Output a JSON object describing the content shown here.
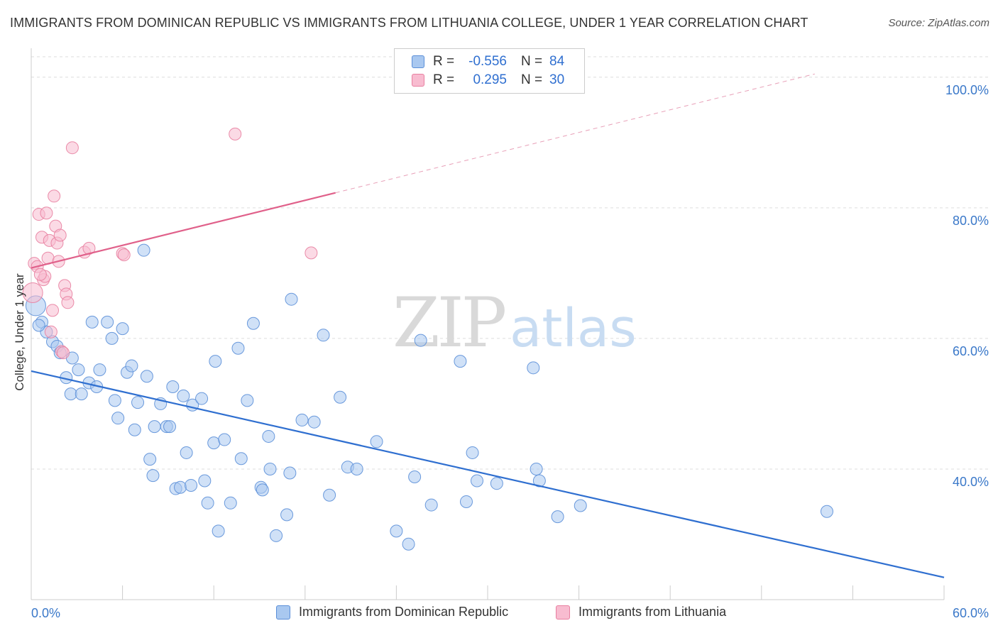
{
  "title": "IMMIGRANTS FROM DOMINICAN REPUBLIC VS IMMIGRANTS FROM LITHUANIA COLLEGE, UNDER 1 YEAR CORRELATION CHART",
  "source": "Source: ZipAtlas.com",
  "watermark": {
    "zip": "ZIP",
    "atlas": "atlas"
  },
  "legend": {
    "rows": [
      {
        "r_label": "R =",
        "r_value": "-0.556",
        "n_label": "N =",
        "n_value": "84",
        "color": "#a9c8f0",
        "border": "#5b8fd8"
      },
      {
        "r_label": "R =",
        "r_value": "0.295",
        "n_label": "N =",
        "n_value": "30",
        "color": "#f8bcd0",
        "border": "#e87fa0"
      }
    ]
  },
  "bottom_legend": [
    {
      "label": "Immigrants from Dominican Republic",
      "color": "#a9c8f0",
      "border": "#5b8fd8"
    },
    {
      "label": "Immigrants from Lithuania",
      "color": "#f8bcd0",
      "border": "#e87fa0"
    }
  ],
  "chart_data": {
    "type": "scatter",
    "ylabel": "College, Under 1 year",
    "xlim": [
      0,
      60
    ],
    "ylim": [
      20,
      104
    ],
    "x_tick_labels": [
      "0.0%",
      "60.0%"
    ],
    "y_ticks": [
      40,
      60,
      80,
      100
    ],
    "y_tick_labels": [
      "40.0%",
      "60.0%",
      "80.0%",
      "100.0%"
    ],
    "grid": true,
    "series": [
      {
        "name": "Immigrants from Dominican Republic",
        "color": "#5b8fd8",
        "fill": "#a9c8f0",
        "trend": {
          "x": [
            0,
            60
          ],
          "y": [
            55.0,
            23.4
          ],
          "color": "#2f6fd0"
        },
        "points": [
          [
            0.3,
            65.0
          ],
          [
            0.7,
            62.5
          ],
          [
            1.0,
            61.0
          ],
          [
            1.4,
            59.5
          ],
          [
            1.7,
            58.8
          ],
          [
            1.9,
            57.8
          ],
          [
            2.3,
            54.0
          ],
          [
            2.7,
            57.0
          ],
          [
            3.1,
            55.2
          ],
          [
            2.6,
            51.5
          ],
          [
            3.3,
            51.5
          ],
          [
            3.8,
            53.2
          ],
          [
            4.0,
            62.5
          ],
          [
            4.5,
            55.2
          ],
          [
            4.3,
            52.6
          ],
          [
            5.0,
            62.5
          ],
          [
            5.3,
            60.0
          ],
          [
            5.5,
            50.5
          ],
          [
            5.7,
            47.8
          ],
          [
            6.0,
            61.5
          ],
          [
            6.3,
            54.8
          ],
          [
            6.6,
            55.8
          ],
          [
            6.8,
            46.0
          ],
          [
            7.0,
            50.2
          ],
          [
            7.6,
            54.2
          ],
          [
            7.4,
            73.5
          ],
          [
            7.8,
            41.5
          ],
          [
            8.0,
            39.0
          ],
          [
            8.1,
            46.5
          ],
          [
            8.5,
            50.0
          ],
          [
            8.9,
            46.5
          ],
          [
            9.1,
            46.5
          ],
          [
            9.3,
            52.6
          ],
          [
            9.5,
            37.0
          ],
          [
            9.8,
            37.2
          ],
          [
            10.0,
            51.2
          ],
          [
            10.2,
            42.5
          ],
          [
            10.6,
            49.8
          ],
          [
            10.5,
            37.5
          ],
          [
            11.2,
            50.8
          ],
          [
            11.4,
            38.2
          ],
          [
            11.6,
            34.8
          ],
          [
            12.0,
            44.0
          ],
          [
            12.1,
            56.5
          ],
          [
            12.3,
            30.5
          ],
          [
            12.7,
            44.5
          ],
          [
            13.1,
            34.8
          ],
          [
            13.6,
            58.5
          ],
          [
            13.8,
            41.6
          ],
          [
            14.2,
            50.5
          ],
          [
            14.6,
            62.3
          ],
          [
            15.1,
            37.2
          ],
          [
            15.2,
            36.8
          ],
          [
            15.6,
            45.0
          ],
          [
            15.7,
            40.0
          ],
          [
            16.8,
            33.0
          ],
          [
            17.0,
            39.4
          ],
          [
            16.1,
            29.8
          ],
          [
            17.1,
            66.0
          ],
          [
            17.8,
            47.5
          ],
          [
            18.6,
            47.2
          ],
          [
            19.2,
            60.5
          ],
          [
            19.6,
            36.0
          ],
          [
            20.3,
            51.0
          ],
          [
            20.8,
            40.3
          ],
          [
            21.4,
            40.0
          ],
          [
            22.7,
            44.2
          ],
          [
            24.0,
            30.5
          ],
          [
            24.8,
            28.5
          ],
          [
            25.2,
            38.8
          ],
          [
            25.6,
            59.7
          ],
          [
            26.3,
            34.5
          ],
          [
            28.2,
            56.5
          ],
          [
            28.6,
            35.0
          ],
          [
            29.0,
            42.5
          ],
          [
            29.3,
            38.2
          ],
          [
            30.6,
            37.8
          ],
          [
            33.2,
            40.0
          ],
          [
            33.4,
            38.2
          ],
          [
            34.6,
            32.7
          ],
          [
            36.1,
            34.4
          ],
          [
            33.0,
            55.5
          ],
          [
            52.3,
            33.5
          ],
          [
            0.5,
            62.0
          ]
        ]
      },
      {
        "name": "Immigrants from Lithuania",
        "color": "#e87fa0",
        "fill": "#f8bcd0",
        "trend": {
          "x": [
            0,
            20
          ],
          "y": [
            70.8,
            82.3
          ],
          "dash_x": [
            20,
            51.5
          ],
          "dash_y": [
            82.3,
            100.5
          ],
          "color": "#e0608a"
        },
        "points": [
          [
            0.2,
            71.5
          ],
          [
            0.4,
            71.0
          ],
          [
            0.5,
            79.0
          ],
          [
            0.7,
            75.5
          ],
          [
            0.8,
            69.0
          ],
          [
            0.9,
            69.5
          ],
          [
            1.0,
            79.2
          ],
          [
            1.1,
            72.3
          ],
          [
            1.2,
            75.0
          ],
          [
            1.3,
            61.0
          ],
          [
            1.4,
            64.3
          ],
          [
            1.5,
            81.8
          ],
          [
            1.6,
            77.2
          ],
          [
            1.7,
            74.6
          ],
          [
            1.8,
            71.8
          ],
          [
            1.9,
            75.8
          ],
          [
            2.0,
            58.0
          ],
          [
            2.1,
            57.8
          ],
          [
            2.2,
            68.1
          ],
          [
            2.3,
            66.8
          ],
          [
            2.4,
            65.5
          ],
          [
            2.7,
            89.2
          ],
          [
            3.5,
            73.2
          ],
          [
            3.8,
            73.8
          ],
          [
            6.0,
            73.0
          ],
          [
            6.1,
            72.8
          ],
          [
            13.4,
            91.3
          ],
          [
            18.4,
            73.1
          ],
          [
            0.1,
            67.0
          ],
          [
            0.6,
            69.8
          ]
        ]
      }
    ]
  }
}
